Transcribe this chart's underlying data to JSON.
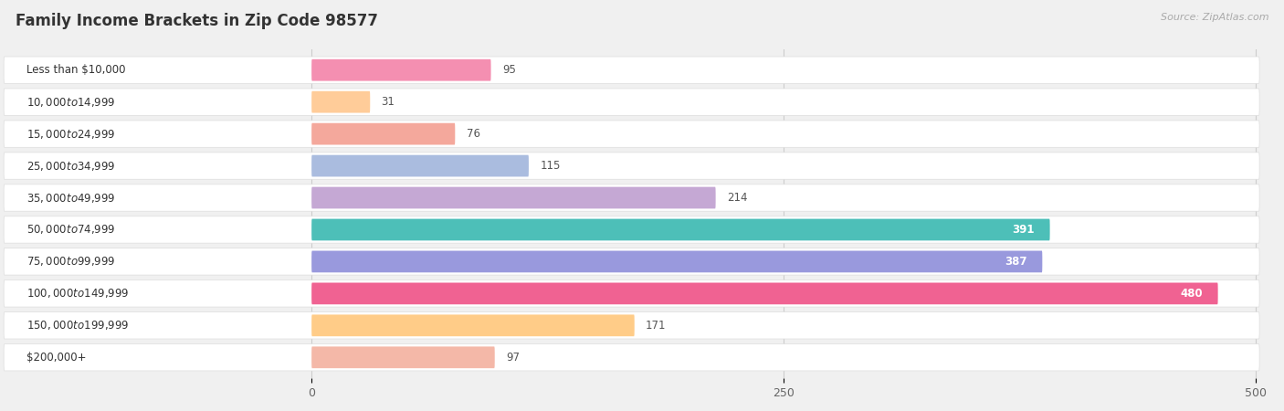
{
  "title": "Family Income Brackets in Zip Code 98577",
  "source": "Source: ZipAtlas.com",
  "categories": [
    "Less than $10,000",
    "$10,000 to $14,999",
    "$15,000 to $24,999",
    "$25,000 to $34,999",
    "$35,000 to $49,999",
    "$50,000 to $74,999",
    "$75,000 to $99,999",
    "$100,000 to $149,999",
    "$150,000 to $199,999",
    "$200,000+"
  ],
  "values": [
    95,
    31,
    76,
    115,
    214,
    391,
    387,
    480,
    171,
    97
  ],
  "bar_colors": [
    "#F48FB1",
    "#FFCC99",
    "#F4A89C",
    "#AABCDF",
    "#C5A8D4",
    "#4DBFB8",
    "#9999DD",
    "#F06292",
    "#FFCC88",
    "#F4B8A8"
  ],
  "xmax": 500,
  "xlim_left": -165,
  "xlim_right": 515,
  "xticks": [
    0,
    250,
    500
  ],
  "background_color": "#f0f0f0",
  "bar_bg_color": "#ffffff",
  "row_bg_color": "#e8e8e8",
  "label_inside_threshold": 300,
  "label_inside_color": "#ffffff",
  "label_outside_color": "#555555",
  "title_fontsize": 12,
  "source_fontsize": 8,
  "label_fontsize": 8.5,
  "value_fontsize": 8.5,
  "tick_fontsize": 9
}
